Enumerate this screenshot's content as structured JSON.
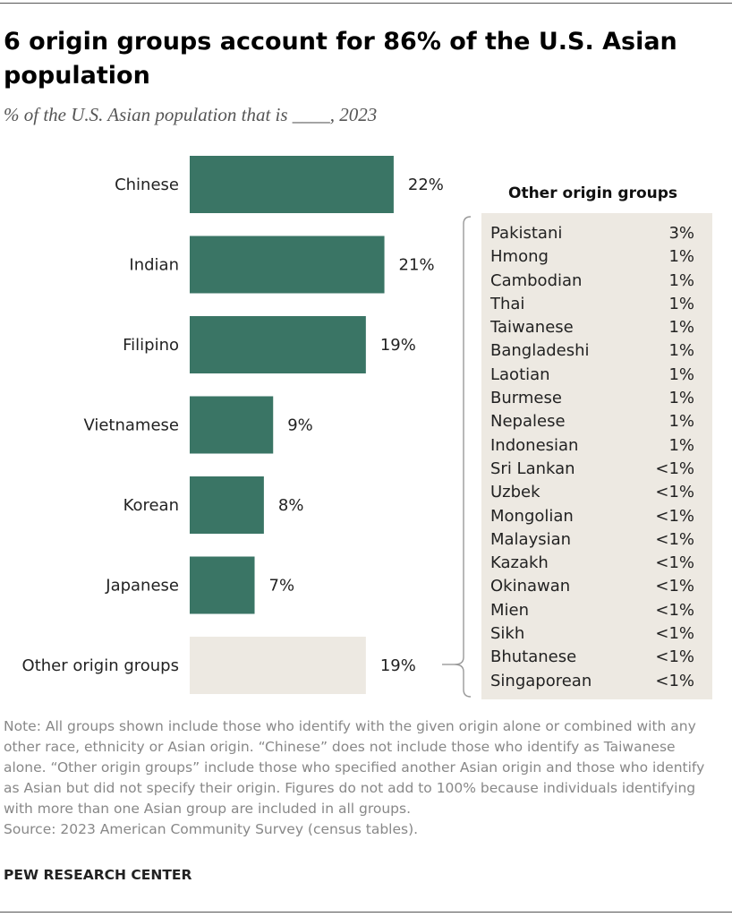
{
  "title": "6 origin groups account for 86% of the U.S. Asian population",
  "subtitle": "% of the U.S. Asian population that is ____, 2023",
  "chart_data": {
    "type": "bar",
    "orientation": "horizontal",
    "categories": [
      "Chinese",
      "Indian",
      "Filipino",
      "Vietnamese",
      "Korean",
      "Japanese",
      "Other origin groups"
    ],
    "values": [
      22,
      21,
      19,
      9,
      8,
      7,
      19
    ],
    "value_labels": [
      "22%",
      "21%",
      "19%",
      "9%",
      "8%",
      "7%",
      "19%"
    ],
    "unit": "%",
    "colors": {
      "main": "#3a7565",
      "other": "#ede9e2"
    },
    "legend": "none",
    "grid": false
  },
  "other_groups": {
    "header": "Other origin groups",
    "items": [
      {
        "name": "Pakistani",
        "value": "3%"
      },
      {
        "name": "Hmong",
        "value": "1%"
      },
      {
        "name": "Cambodian",
        "value": "1%"
      },
      {
        "name": "Thai",
        "value": "1%"
      },
      {
        "name": "Taiwanese",
        "value": "1%"
      },
      {
        "name": "Bangladeshi",
        "value": "1%"
      },
      {
        "name": "Laotian",
        "value": "1%"
      },
      {
        "name": "Burmese",
        "value": "1%"
      },
      {
        "name": "Nepalese",
        "value": "1%"
      },
      {
        "name": "Indonesian",
        "value": "1%"
      },
      {
        "name": "Sri Lankan",
        "value": "<1%"
      },
      {
        "name": "Uzbek",
        "value": "<1%"
      },
      {
        "name": "Mongolian",
        "value": "<1%"
      },
      {
        "name": "Malaysian",
        "value": "<1%"
      },
      {
        "name": "Kazakh",
        "value": "<1%"
      },
      {
        "name": "Okinawan",
        "value": "<1%"
      },
      {
        "name": "Mien",
        "value": "<1%"
      },
      {
        "name": "Sikh",
        "value": "<1%"
      },
      {
        "name": "Bhutanese",
        "value": "<1%"
      },
      {
        "name": "Singaporean",
        "value": "<1%"
      }
    ]
  },
  "note": "Note: All groups shown include those who identify with the given origin alone or combined with any other race, ethnicity or Asian origin. “Chinese” does not include those who identify as Taiwanese alone. “Other origin groups” include those who specified another Asian origin and those who identify as Asian but did not specify their origin. Figures do not add to 100% because individuals identifying with more than one Asian group are included in all groups.",
  "source": "Source: 2023 American Community Survey (census tables).",
  "brand": "PEW RESEARCH CENTER"
}
